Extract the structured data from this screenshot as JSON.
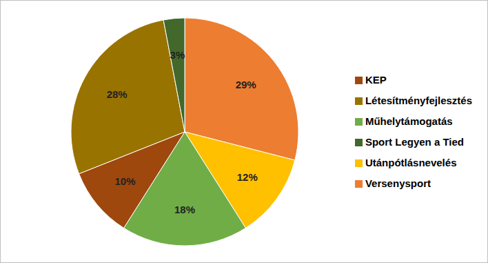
{
  "chart_data": {
    "type": "pie",
    "categories": [
      "Versenysport",
      "Utánpótlásnevelés",
      "Műhelytámogatás",
      "KEP",
      "Létesítményfejlesztés",
      "Sport Legyen a Tied"
    ],
    "values": [
      29,
      12,
      18,
      10,
      28,
      3
    ],
    "value_labels": [
      "29%",
      "12%",
      "18%",
      "10%",
      "28%",
      "3%"
    ],
    "colors": [
      "#ED7D31",
      "#FFC000",
      "#70AD47",
      "#9E480E",
      "#997300",
      "#43682B"
    ],
    "data_labels": true,
    "legend": "right"
  }
}
